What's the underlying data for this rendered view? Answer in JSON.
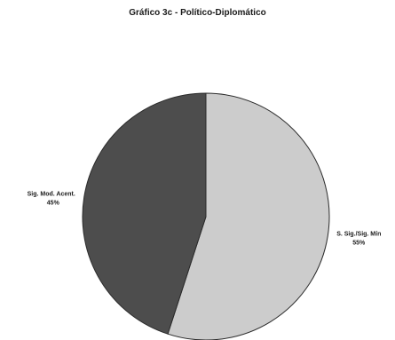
{
  "chart_data": {
    "type": "pie",
    "title": "Gráfico 3c - Político-Diplomático",
    "slices": [
      {
        "label": "Sig. Mod. Acent.",
        "value": 45,
        "percent_label": "45%",
        "color": "#4d4d4d"
      },
      {
        "label": "S. Sig./Sig. Mín",
        "value": 55,
        "percent_label": "55%",
        "color": "#cccccc"
      }
    ],
    "start_at": "top",
    "direction": "clockwise",
    "first_slice": "S. Sig./Sig. Mín",
    "legend": "none"
  }
}
